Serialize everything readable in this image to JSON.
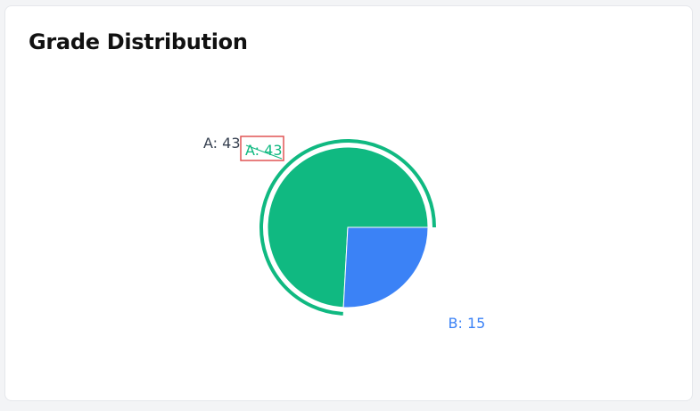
{
  "card": {
    "title": "Grade Distribution"
  },
  "chart_data": {
    "type": "pie",
    "title": "Grade Distribution",
    "slices": [
      {
        "label": "A",
        "value": 43,
        "color": "#10b981",
        "text": "A: 43"
      },
      {
        "label": "B",
        "value": 15,
        "color": "#3b82f6",
        "text": "B: 15"
      }
    ],
    "active_slice": "A",
    "tooltip": {
      "text": "A: 43",
      "border_color": "#e05555"
    },
    "external_label_color": "#374151"
  }
}
